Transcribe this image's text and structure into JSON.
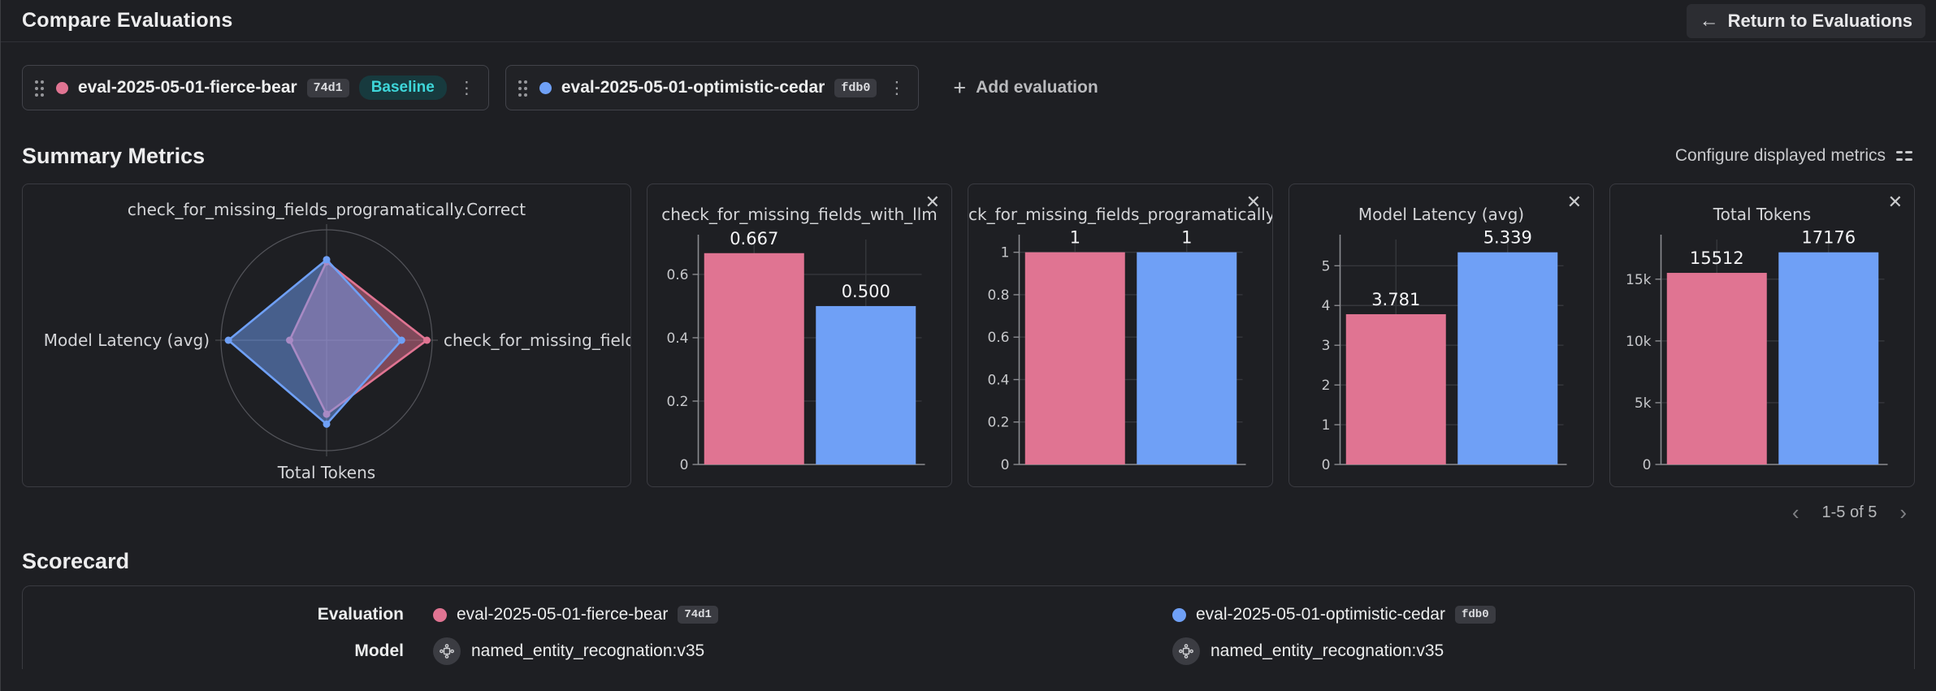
{
  "header": {
    "title": "Compare Evaluations",
    "return_button": "Return to Evaluations"
  },
  "toolbar": {
    "add_evaluation": "Add evaluation"
  },
  "evaluations": [
    {
      "name": "eval-2025-05-01-fierce-bear",
      "id": "74d1",
      "color": "#e07492",
      "baseline_label": "Baseline"
    },
    {
      "name": "eval-2025-05-01-optimistic-cedar",
      "id": "fdb0",
      "color": "#6fa0f6"
    }
  ],
  "summary": {
    "title": "Summary Metrics",
    "configure_label": "Configure displayed metrics",
    "pagination": "1-5 of 5"
  },
  "scorecard": {
    "title": "Scorecard",
    "evaluation_label": "Evaluation",
    "model_label": "Model",
    "models": [
      "named_entity_recognation:v35",
      "named_entity_recognation:v35"
    ]
  },
  "icons": {
    "close": "✕",
    "back_arrow": "←",
    "plus": "+",
    "kebab": "⋮",
    "chevron_left": "‹",
    "chevron_right": "›"
  },
  "colors": {
    "pink": "#e07492",
    "blue": "#6fa0f6",
    "teal": "#3ed6d9",
    "card_border": "#3a3b41",
    "grid_line": "#36373c",
    "axis_line": "#8b8c90"
  },
  "chart_data": [
    {
      "type": "radar",
      "axes": [
        "check_for_missing_fields_programatically.Correct",
        "check_for_missing_fields_",
        "Total Tokens",
        "Model Latency (avg)"
      ],
      "series": [
        {
          "name": "eval-2025-05-01-fierce-bear",
          "color": "#e07492",
          "fill": "rgba(224,116,146,0.5)",
          "values": [
            0.71,
            0.95,
            0.67,
            0.35
          ]
        },
        {
          "name": "eval-2025-05-01-optimistic-cedar",
          "color": "#6fa0f6",
          "fill": "rgba(111,160,246,0.5)",
          "values": [
            0.73,
            0.71,
            0.76,
            0.93
          ]
        }
      ]
    },
    {
      "type": "bar",
      "title": "check_for_missing_fields_with_llm",
      "axis_max": 0.71,
      "ticks": [
        {
          "v": 0,
          "label": "0"
        },
        {
          "v": 0.2,
          "label": "0.2"
        },
        {
          "v": 0.4,
          "label": "0.4"
        },
        {
          "v": 0.6,
          "label": "0.6"
        }
      ],
      "series": [
        {
          "name": "eval-2025-05-01-fierce-bear",
          "color": "#e07492",
          "value": 0.667,
          "label": "0.667"
        },
        {
          "name": "eval-2025-05-01-optimistic-cedar",
          "color": "#6fa0f6",
          "value": 0.5,
          "label": "0.500"
        }
      ]
    },
    {
      "type": "bar",
      "title": "ck_for_missing_fields_programatically.C",
      "axis_max": 1.06,
      "ticks": [
        {
          "v": 0,
          "label": "0"
        },
        {
          "v": 0.2,
          "label": "0.2"
        },
        {
          "v": 0.4,
          "label": "0.4"
        },
        {
          "v": 0.6,
          "label": "0.6"
        },
        {
          "v": 0.8,
          "label": "0.8"
        },
        {
          "v": 1,
          "label": "1"
        }
      ],
      "series": [
        {
          "name": "eval-2025-05-01-fierce-bear",
          "color": "#e07492",
          "value": 1,
          "label": "1"
        },
        {
          "name": "eval-2025-05-01-optimistic-cedar",
          "color": "#6fa0f6",
          "value": 1,
          "label": "1"
        }
      ]
    },
    {
      "type": "bar",
      "title": "Model Latency (avg)",
      "axis_max": 5.66,
      "ticks": [
        {
          "v": 0,
          "label": "0"
        },
        {
          "v": 1,
          "label": "1"
        },
        {
          "v": 2,
          "label": "2"
        },
        {
          "v": 3,
          "label": "3"
        },
        {
          "v": 4,
          "label": "4"
        },
        {
          "v": 5,
          "label": "5"
        }
      ],
      "series": [
        {
          "name": "eval-2025-05-01-fierce-bear",
          "color": "#e07492",
          "value": 3.781,
          "label": "3.781"
        },
        {
          "name": "eval-2025-05-01-optimistic-cedar",
          "color": "#6fa0f6",
          "value": 5.339,
          "label": "5.339"
        }
      ]
    },
    {
      "type": "bar",
      "title": "Total Tokens",
      "axis_max": 18210,
      "ticks": [
        {
          "v": 0,
          "label": "0"
        },
        {
          "v": 5000,
          "label": "5k"
        },
        {
          "v": 10000,
          "label": "10k"
        },
        {
          "v": 15000,
          "label": "15k"
        }
      ],
      "series": [
        {
          "name": "eval-2025-05-01-fierce-bear",
          "color": "#e07492",
          "value": 15512,
          "label": "15512"
        },
        {
          "name": "eval-2025-05-01-optimistic-cedar",
          "color": "#6fa0f6",
          "value": 17176,
          "label": "17176"
        }
      ]
    }
  ]
}
